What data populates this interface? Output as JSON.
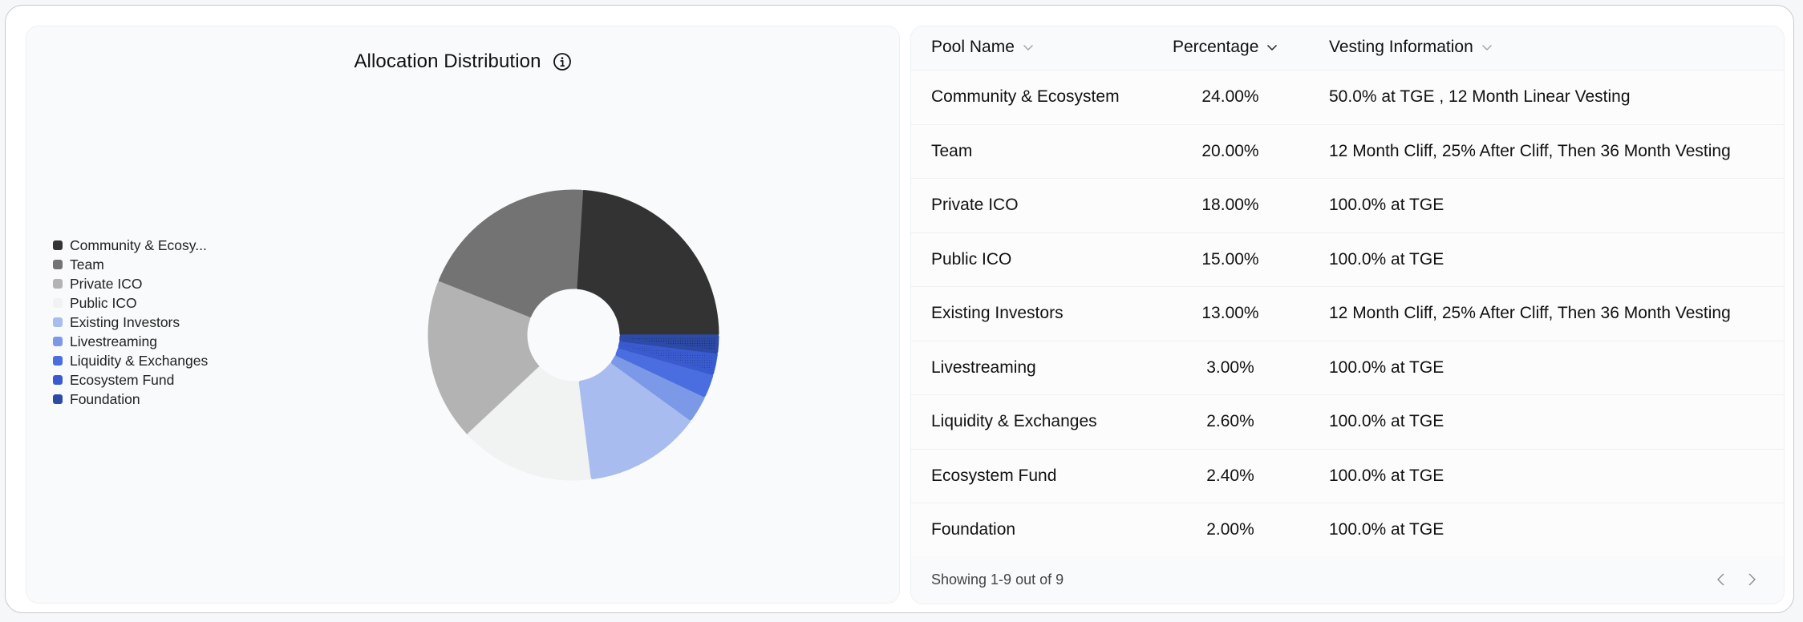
{
  "chart_panel": {
    "title": "Allocation Distribution",
    "info_icon": "info-circle-icon"
  },
  "legend": {
    "items": [
      {
        "label": "Community & Ecosy...",
        "color": "#333333"
      },
      {
        "label": "Team",
        "color": "#737373"
      },
      {
        "label": "Private ICO",
        "color": "#b3b3b3"
      },
      {
        "label": "Public ICO",
        "color": "#f1f2f2"
      },
      {
        "label": "Existing Investors",
        "color": "#a9bcef"
      },
      {
        "label": "Livestreaming",
        "color": "#7b99e7"
      },
      {
        "label": "Liquidity & Exchanges",
        "color": "#4a6edf"
      },
      {
        "label": "Ecosystem Fund",
        "color": "#3a5bcf"
      },
      {
        "label": "Foundation",
        "color": "#2c4aa6"
      }
    ]
  },
  "chart_data": {
    "type": "pie",
    "title": "Allocation Distribution",
    "donut": true,
    "categories": [
      "Community & Ecosystem",
      "Team",
      "Private ICO",
      "Public ICO",
      "Existing Investors",
      "Livestreaming",
      "Liquidity & Exchanges",
      "Ecosystem Fund",
      "Foundation"
    ],
    "values": [
      24.0,
      20.0,
      18.0,
      15.0,
      13.0,
      3.0,
      2.6,
      2.4,
      2.0
    ],
    "colors": [
      "#333333",
      "#737373",
      "#b3b3b3",
      "#f1f2f2",
      "#a9bcef",
      "#7b99e7",
      "#4a6edf",
      "#3a5bcf",
      "#2c4aa6"
    ],
    "patterned": [
      false,
      false,
      false,
      false,
      false,
      false,
      false,
      true,
      true
    ],
    "legend_position": "left",
    "start_angle_deg": 90,
    "direction": "counterclockwise"
  },
  "table": {
    "columns": [
      {
        "label": "Pool Name",
        "sort_icon": "chevron-down-icon",
        "active": false
      },
      {
        "label": "Percentage",
        "sort_icon": "chevron-down-icon",
        "active": true
      },
      {
        "label": "Vesting Information",
        "sort_icon": "chevron-down-icon",
        "active": false
      }
    ],
    "rows": [
      {
        "pool": "Community & Ecosystem",
        "percentage": "24.00%",
        "vesting": "50.0% at TGE , 12 Month Linear Vesting"
      },
      {
        "pool": "Team",
        "percentage": "20.00%",
        "vesting": "12 Month Cliff, 25% After Cliff, Then 36 Month Vesting"
      },
      {
        "pool": "Private ICO",
        "percentage": "18.00%",
        "vesting": "100.0% at TGE"
      },
      {
        "pool": "Public ICO",
        "percentage": "15.00%",
        "vesting": "100.0% at TGE"
      },
      {
        "pool": "Existing Investors",
        "percentage": "13.00%",
        "vesting": "12 Month Cliff, 25% After Cliff, Then 36 Month Vesting"
      },
      {
        "pool": "Livestreaming",
        "percentage": "3.00%",
        "vesting": "100.0% at TGE"
      },
      {
        "pool": "Liquidity & Exchanges",
        "percentage": "2.60%",
        "vesting": "100.0% at TGE"
      },
      {
        "pool": "Ecosystem Fund",
        "percentage": "2.40%",
        "vesting": "100.0% at TGE"
      },
      {
        "pool": "Foundation",
        "percentage": "2.00%",
        "vesting": "100.0% at TGE"
      }
    ],
    "footer": {
      "showing": "Showing 1-9 out of 9",
      "prev_icon": "chevron-left-icon",
      "next_icon": "chevron-right-icon"
    }
  }
}
